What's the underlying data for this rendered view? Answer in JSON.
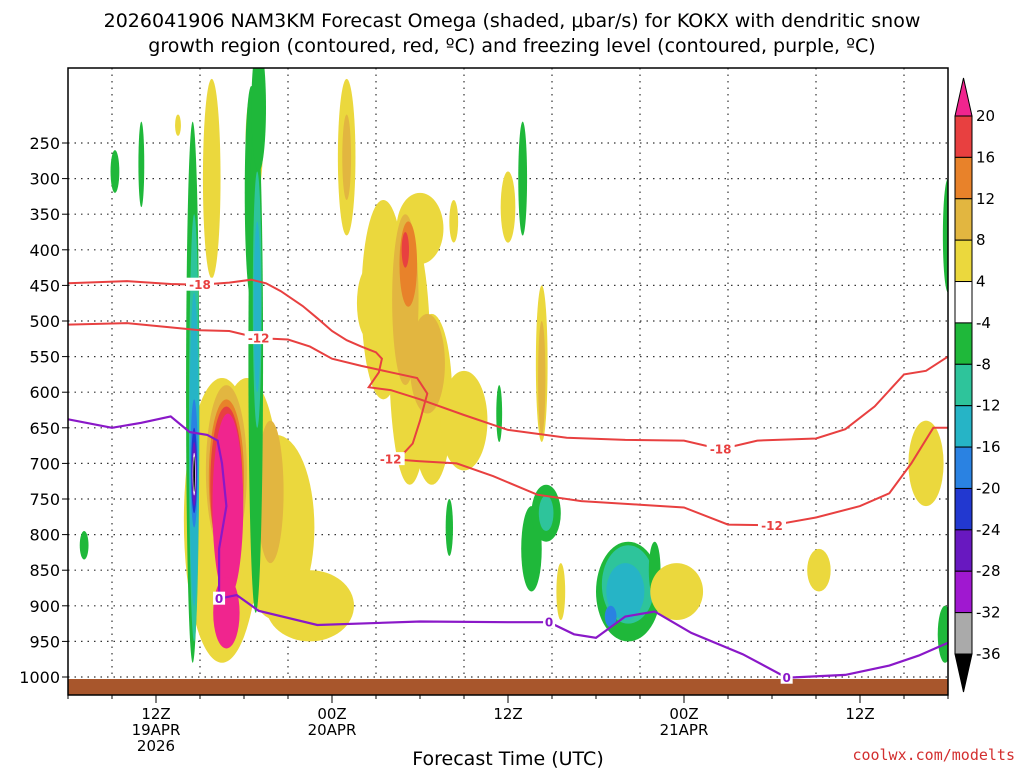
{
  "chart_data": {
    "type": "time-height cross section",
    "title_line1": "2026041906 NAM3KM Forecast Omega (shaded, μbar/s) for KOKX with dendritic snow",
    "title_line2": "growth region (contoured, red, ºC) and freezing level (contoured, purple, ºC)",
    "xlabel": "Forecast Time (UTC)",
    "credit": "coolwx.com/modelts",
    "x_ticks": [
      {
        "hour": 12,
        "l1": "12Z",
        "l2": "19APR",
        "l3": "2026"
      },
      {
        "hour": 24,
        "l1": "00Z",
        "l2": "20APR",
        "l3": ""
      },
      {
        "hour": 36,
        "l1": "12Z",
        "l2": "",
        "l3": ""
      },
      {
        "hour": 48,
        "l1": "00Z",
        "l2": "21APR",
        "l3": ""
      },
      {
        "hour": 60,
        "l1": "12Z",
        "l2": "",
        "l3": ""
      }
    ],
    "x_range_hours": [
      6,
      66
    ],
    "y_range_hpa": [
      1020,
      180
    ],
    "y_ticks": [
      250,
      300,
      350,
      400,
      450,
      500,
      550,
      600,
      650,
      700,
      750,
      800,
      850,
      900,
      950,
      1000
    ],
    "colorbar": {
      "labels": [
        "20",
        "16",
        "12",
        "8",
        "4",
        "-4",
        "-8",
        "-12",
        "-16",
        "-20",
        "-24",
        "-28",
        "-32",
        "-36"
      ],
      "colors": [
        "#f0258e",
        "#e84040",
        "#e8822a",
        "#e2b640",
        "#ebd83d",
        "#ffffff",
        "#1fb83a",
        "#2ec49b",
        "#26b4c6",
        "#2a82e2",
        "#2238d0",
        "#6818c0",
        "#a018d0",
        "#aaaaaa",
        "#000000"
      ]
    },
    "omega_colors": {
      "p4": "#ebd83d",
      "p8": "#e2b640",
      "p12": "#e8822a",
      "p16": "#e84040",
      "p20": "#f0258e",
      "n4": "#1fb83a",
      "n8": "#2ec49b",
      "n12": "#26b4c6",
      "n16": "#2a82e2",
      "n20": "#2238d0",
      "n24": "#6818c0",
      "n28": "#a018d0",
      "n32": "#aaaaaa"
    },
    "dgz_color": "#e84040",
    "freezing_color": "#8a18c8",
    "ground_color": "#a8562c",
    "contour_labels": [
      {
        "text": "-18",
        "hour": 15.0,
        "p": 449,
        "color": "red"
      },
      {
        "text": "-12",
        "hour": 19.0,
        "p": 524,
        "color": "red"
      },
      {
        "text": "-12",
        "hour": 28.0,
        "p": 694,
        "color": "red"
      },
      {
        "text": "-18",
        "hour": 50.5,
        "p": 680,
        "color": "red"
      },
      {
        "text": "-12",
        "hour": 54.0,
        "p": 787,
        "color": "red"
      },
      {
        "text": "0",
        "hour": 16.3,
        "p": 890,
        "color": "purple"
      },
      {
        "text": "0",
        "hour": 38.8,
        "p": 923,
        "color": "purple"
      },
      {
        "text": "0",
        "hour": 55.0,
        "p": 1001,
        "color": "purple"
      }
    ],
    "contour_minus18": [
      [
        6,
        447
      ],
      [
        10,
        444
      ],
      [
        13,
        448
      ],
      [
        15,
        449
      ],
      [
        17,
        446
      ],
      [
        18.5,
        442
      ],
      [
        19.5,
        447
      ],
      [
        20.5,
        458
      ],
      [
        22,
        479
      ],
      [
        23,
        496
      ],
      [
        24,
        514
      ],
      [
        25,
        527
      ],
      [
        26,
        536
      ],
      [
        27,
        544
      ],
      [
        27.4,
        553
      ],
      [
        27.2,
        572
      ],
      [
        26.5,
        593
      ],
      [
        28,
        597
      ],
      [
        30,
        610
      ],
      [
        33,
        632
      ],
      [
        36,
        653
      ],
      [
        40,
        664
      ],
      [
        44,
        667
      ],
      [
        48,
        668
      ],
      [
        50.5,
        680
      ],
      [
        53,
        668
      ],
      [
        57,
        665
      ],
      [
        59,
        652
      ],
      [
        61,
        620
      ],
      [
        63,
        575
      ],
      [
        64.5,
        570
      ],
      [
        66,
        550
      ]
    ],
    "contour_minus12": [
      [
        6,
        505
      ],
      [
        10,
        503
      ],
      [
        13,
        509
      ],
      [
        15,
        513
      ],
      [
        17,
        514
      ],
      [
        19,
        524
      ],
      [
        21,
        526
      ],
      [
        22.5,
        536
      ],
      [
        24,
        553
      ],
      [
        26,
        563
      ],
      [
        28,
        572
      ],
      [
        29.8,
        580
      ],
      [
        30.5,
        602
      ],
      [
        30,
        640
      ],
      [
        29.5,
        672
      ],
      [
        28.7,
        690
      ],
      [
        28,
        694
      ],
      [
        30,
        697
      ],
      [
        32.5,
        700
      ],
      [
        35,
        718
      ],
      [
        38,
        744
      ],
      [
        41,
        753
      ],
      [
        45,
        758
      ],
      [
        48,
        762
      ],
      [
        51,
        786
      ],
      [
        54,
        787
      ],
      [
        57,
        776
      ],
      [
        60,
        760
      ],
      [
        62,
        742
      ],
      [
        63.5,
        700
      ],
      [
        65,
        650
      ],
      [
        66,
        650
      ]
    ],
    "freezing_level": [
      [
        6,
        638
      ],
      [
        9,
        650
      ],
      [
        11,
        643
      ],
      [
        13,
        634
      ],
      [
        14.3,
        656
      ],
      [
        15.5,
        660
      ],
      [
        16.2,
        668
      ],
      [
        16.5,
        700
      ],
      [
        16.8,
        760
      ],
      [
        16.3,
        820
      ],
      [
        16.3,
        890
      ],
      [
        17.5,
        885
      ],
      [
        19,
        907
      ],
      [
        23,
        927
      ],
      [
        30,
        922
      ],
      [
        36,
        923
      ],
      [
        38.8,
        923
      ],
      [
        40.5,
        940
      ],
      [
        42,
        945
      ],
      [
        44,
        915
      ],
      [
        46,
        908
      ],
      [
        48.5,
        938
      ],
      [
        52,
        968
      ],
      [
        55,
        1001
      ],
      [
        59,
        997
      ],
      [
        62,
        984
      ],
      [
        64,
        970
      ],
      [
        66,
        952
      ]
    ]
  }
}
